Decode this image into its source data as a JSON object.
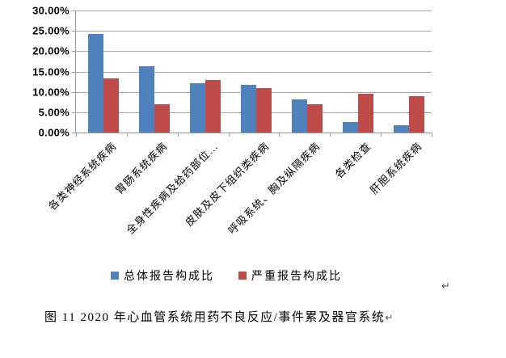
{
  "chart_data": {
    "type": "bar",
    "title": "",
    "xlabel": "",
    "ylabel": "",
    "categories": [
      "各类神经系统疾病",
      "胃肠系统疾病",
      "全身性疾病及给药部位…",
      "皮肤及皮下组织类疾病",
      "呼吸系统、胸及纵隔疾病",
      "各类检查",
      "肝胆系统疾病"
    ],
    "series": [
      {
        "name": "总体报告构成比",
        "color": "#4F81BD",
        "values": [
          24.3,
          16.3,
          12.2,
          11.8,
          8.2,
          2.5,
          1.8
        ]
      },
      {
        "name": "严重报告构成比",
        "color": "#BE4B48",
        "values": [
          13.4,
          7.0,
          13.0,
          11.0,
          7.0,
          9.6,
          9.0
        ]
      }
    ],
    "ylim": [
      0,
      30
    ],
    "ytick_step": 5,
    "ytick_labels": [
      "0.00%",
      "5.00%",
      "10.00%",
      "15.00%",
      "20.00%",
      "25.00%",
      "30.00%"
    ],
    "grid": true,
    "legend_position": "bottom",
    "value_unit": "percent"
  },
  "colors": {
    "series_total": "#4F81BD",
    "series_serious": "#BE4B48",
    "gridline": "#a8a8a8",
    "axis": "#9a9a9a"
  },
  "legend": {
    "items": [
      {
        "label": "总体报告构成比",
        "color": "#4F81BD"
      },
      {
        "label": "严重报告构成比",
        "color": "#BE4B48"
      }
    ]
  },
  "caption": {
    "text": "图 11  2020 年心血管系统用药不良反应/事件累及器官系统",
    "return_mark": "↵"
  },
  "paragraph_mark": "↵"
}
